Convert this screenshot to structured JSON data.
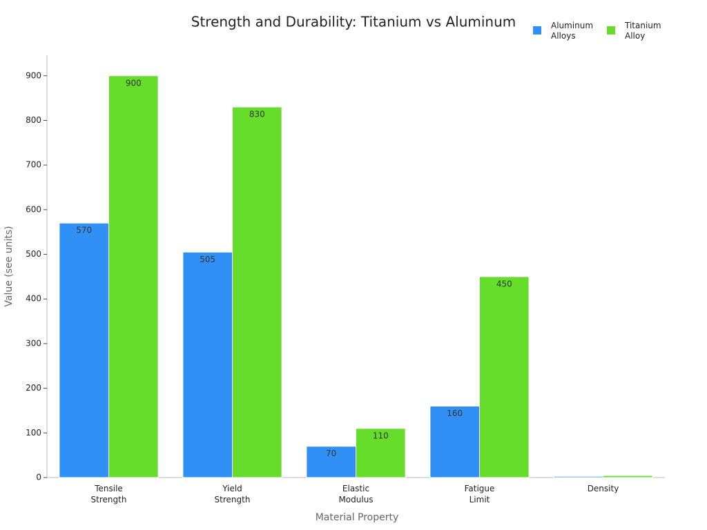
{
  "chart_data": {
    "type": "bar",
    "title": "Strength and Durability: Titanium vs Aluminum",
    "x_label": "Material Property",
    "y_label": "Value (see units)",
    "categories": [
      "Tensile Strength",
      "Yield Strength",
      "Elastic Modulus",
      "Fatigue Limit",
      "Density"
    ],
    "series": [
      {
        "name": "Aluminum Alloys",
        "color": "#3190f5",
        "values": [
          570,
          505,
          70,
          160,
          2.7
        ],
        "value_labels": [
          "570",
          "505",
          "70",
          "160",
          null
        ]
      },
      {
        "name": "Titanium Alloy",
        "color": "#66dd2a",
        "values": [
          900,
          830,
          110,
          450,
          4.5
        ],
        "value_labels": [
          "900",
          "830",
          "110",
          "450",
          null
        ]
      }
    ],
    "ylim": [
      0,
      946
    ],
    "yticks": [
      0,
      100,
      200,
      300,
      400,
      500,
      600,
      700,
      800,
      900
    ],
    "legend": "top-right"
  }
}
